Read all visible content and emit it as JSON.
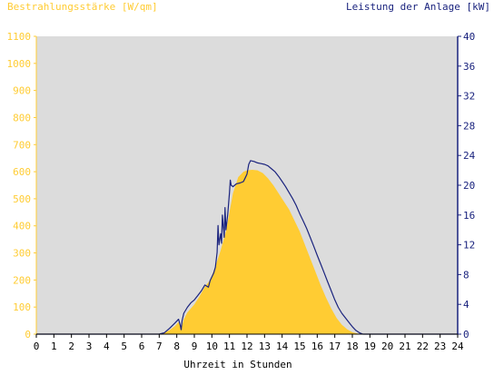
{
  "chart_data": {
    "type": "area",
    "left_axis_label": "Bestrahlungsstärke [W/qm]",
    "right_axis_label": "Leistung der Anlage [kW]",
    "xlabel": "Uhrzeit in Stunden",
    "x_ticks": [
      "0",
      "1",
      "2",
      "3",
      "4",
      "5",
      "6",
      "7",
      "8",
      "9",
      "10",
      "11",
      "12",
      "13",
      "14",
      "15",
      "16",
      "17",
      "18",
      "19",
      "20",
      "21",
      "22",
      "23",
      "24"
    ],
    "left_ticks": [
      "0",
      "100",
      "200",
      "300",
      "400",
      "500",
      "600",
      "700",
      "800",
      "900",
      "1000",
      "1100"
    ],
    "right_ticks": [
      "0",
      "4",
      "8",
      "12",
      "16",
      "20",
      "24",
      "28",
      "32",
      "36",
      "40"
    ],
    "xlim": [
      0,
      24
    ],
    "ylim_left": [
      0,
      1100
    ],
    "ylim_right": [
      0,
      40
    ],
    "grid": false,
    "colors": {
      "irradiance_fill": "#FFCC33",
      "power_line": "#1A237E",
      "plot_background": "#DCDCDC",
      "left_axis_text": "#FFCC33",
      "right_axis_text": "#1A237E"
    },
    "series": [
      {
        "axis": "left",
        "style": "area",
        "points": [
          [
            0,
            0
          ],
          [
            7.0,
            0
          ],
          [
            7.3,
            5
          ],
          [
            7.6,
            15
          ],
          [
            7.9,
            30
          ],
          [
            8.1,
            45
          ],
          [
            8.25,
            20
          ],
          [
            8.4,
            55
          ],
          [
            8.6,
            80
          ],
          [
            9.0,
            110
          ],
          [
            9.3,
            140
          ],
          [
            9.6,
            175
          ],
          [
            9.9,
            200
          ],
          [
            10.2,
            250
          ],
          [
            10.5,
            310
          ],
          [
            10.8,
            380
          ],
          [
            11.0,
            450
          ],
          [
            11.2,
            520
          ],
          [
            11.5,
            580
          ],
          [
            11.8,
            600
          ],
          [
            12.0,
            605
          ],
          [
            12.3,
            607
          ],
          [
            12.6,
            605
          ],
          [
            12.9,
            595
          ],
          [
            13.2,
            575
          ],
          [
            13.5,
            550
          ],
          [
            13.8,
            520
          ],
          [
            14.1,
            490
          ],
          [
            14.4,
            460
          ],
          [
            14.7,
            420
          ],
          [
            15.0,
            380
          ],
          [
            15.3,
            330
          ],
          [
            15.6,
            280
          ],
          [
            15.9,
            230
          ],
          [
            16.2,
            180
          ],
          [
            16.5,
            135
          ],
          [
            16.8,
            95
          ],
          [
            17.1,
            60
          ],
          [
            17.4,
            35
          ],
          [
            17.7,
            18
          ],
          [
            18.0,
            7
          ],
          [
            18.3,
            2
          ],
          [
            18.5,
            0
          ],
          [
            24,
            0
          ]
        ]
      },
      {
        "axis": "right",
        "style": "line",
        "points": [
          [
            0,
            0
          ],
          [
            7.0,
            0
          ],
          [
            7.3,
            0.2
          ],
          [
            7.6,
            0.8
          ],
          [
            7.9,
            1.5
          ],
          [
            8.1,
            2.0
          ],
          [
            8.2,
            1.2
          ],
          [
            8.25,
            0.6
          ],
          [
            8.3,
            1.8
          ],
          [
            8.4,
            2.8
          ],
          [
            8.6,
            3.6
          ],
          [
            8.8,
            4.2
          ],
          [
            9.0,
            4.6
          ],
          [
            9.2,
            5.2
          ],
          [
            9.4,
            5.8
          ],
          [
            9.6,
            6.6
          ],
          [
            9.8,
            6.3
          ],
          [
            9.9,
            7.2
          ],
          [
            10.1,
            8.2
          ],
          [
            10.2,
            9.0
          ],
          [
            10.3,
            11.0
          ],
          [
            10.35,
            14.6
          ],
          [
            10.4,
            12.0
          ],
          [
            10.5,
            13.5
          ],
          [
            10.55,
            12.2
          ],
          [
            10.6,
            16.0
          ],
          [
            10.7,
            13.0
          ],
          [
            10.75,
            17.0
          ],
          [
            10.8,
            14.0
          ],
          [
            10.9,
            16.0
          ],
          [
            11.0,
            19.0
          ],
          [
            11.05,
            20.7
          ],
          [
            11.1,
            20.0
          ],
          [
            11.2,
            19.8
          ],
          [
            11.4,
            20.2
          ],
          [
            11.6,
            20.3
          ],
          [
            11.8,
            20.5
          ],
          [
            11.9,
            21.0
          ],
          [
            12.0,
            21.5
          ],
          [
            12.1,
            22.8
          ],
          [
            12.2,
            23.3
          ],
          [
            12.4,
            23.2
          ],
          [
            12.6,
            23.0
          ],
          [
            12.8,
            22.9
          ],
          [
            13.0,
            22.8
          ],
          [
            13.2,
            22.6
          ],
          [
            13.4,
            22.2
          ],
          [
            13.6,
            21.8
          ],
          [
            13.8,
            21.2
          ],
          [
            14.0,
            20.5
          ],
          [
            14.2,
            19.8
          ],
          [
            14.4,
            19.0
          ],
          [
            14.6,
            18.2
          ],
          [
            14.8,
            17.3
          ],
          [
            15.0,
            16.2
          ],
          [
            15.2,
            15.2
          ],
          [
            15.4,
            14.2
          ],
          [
            15.6,
            13.0
          ],
          [
            15.8,
            11.8
          ],
          [
            16.0,
            10.6
          ],
          [
            16.2,
            9.4
          ],
          [
            16.4,
            8.2
          ],
          [
            16.6,
            7.0
          ],
          [
            16.8,
            5.8
          ],
          [
            17.0,
            4.6
          ],
          [
            17.2,
            3.6
          ],
          [
            17.4,
            2.8
          ],
          [
            17.6,
            2.2
          ],
          [
            17.8,
            1.6
          ],
          [
            18.0,
            1.0
          ],
          [
            18.2,
            0.5
          ],
          [
            18.4,
            0.2
          ],
          [
            18.6,
            0
          ],
          [
            24,
            0
          ]
        ]
      }
    ]
  }
}
